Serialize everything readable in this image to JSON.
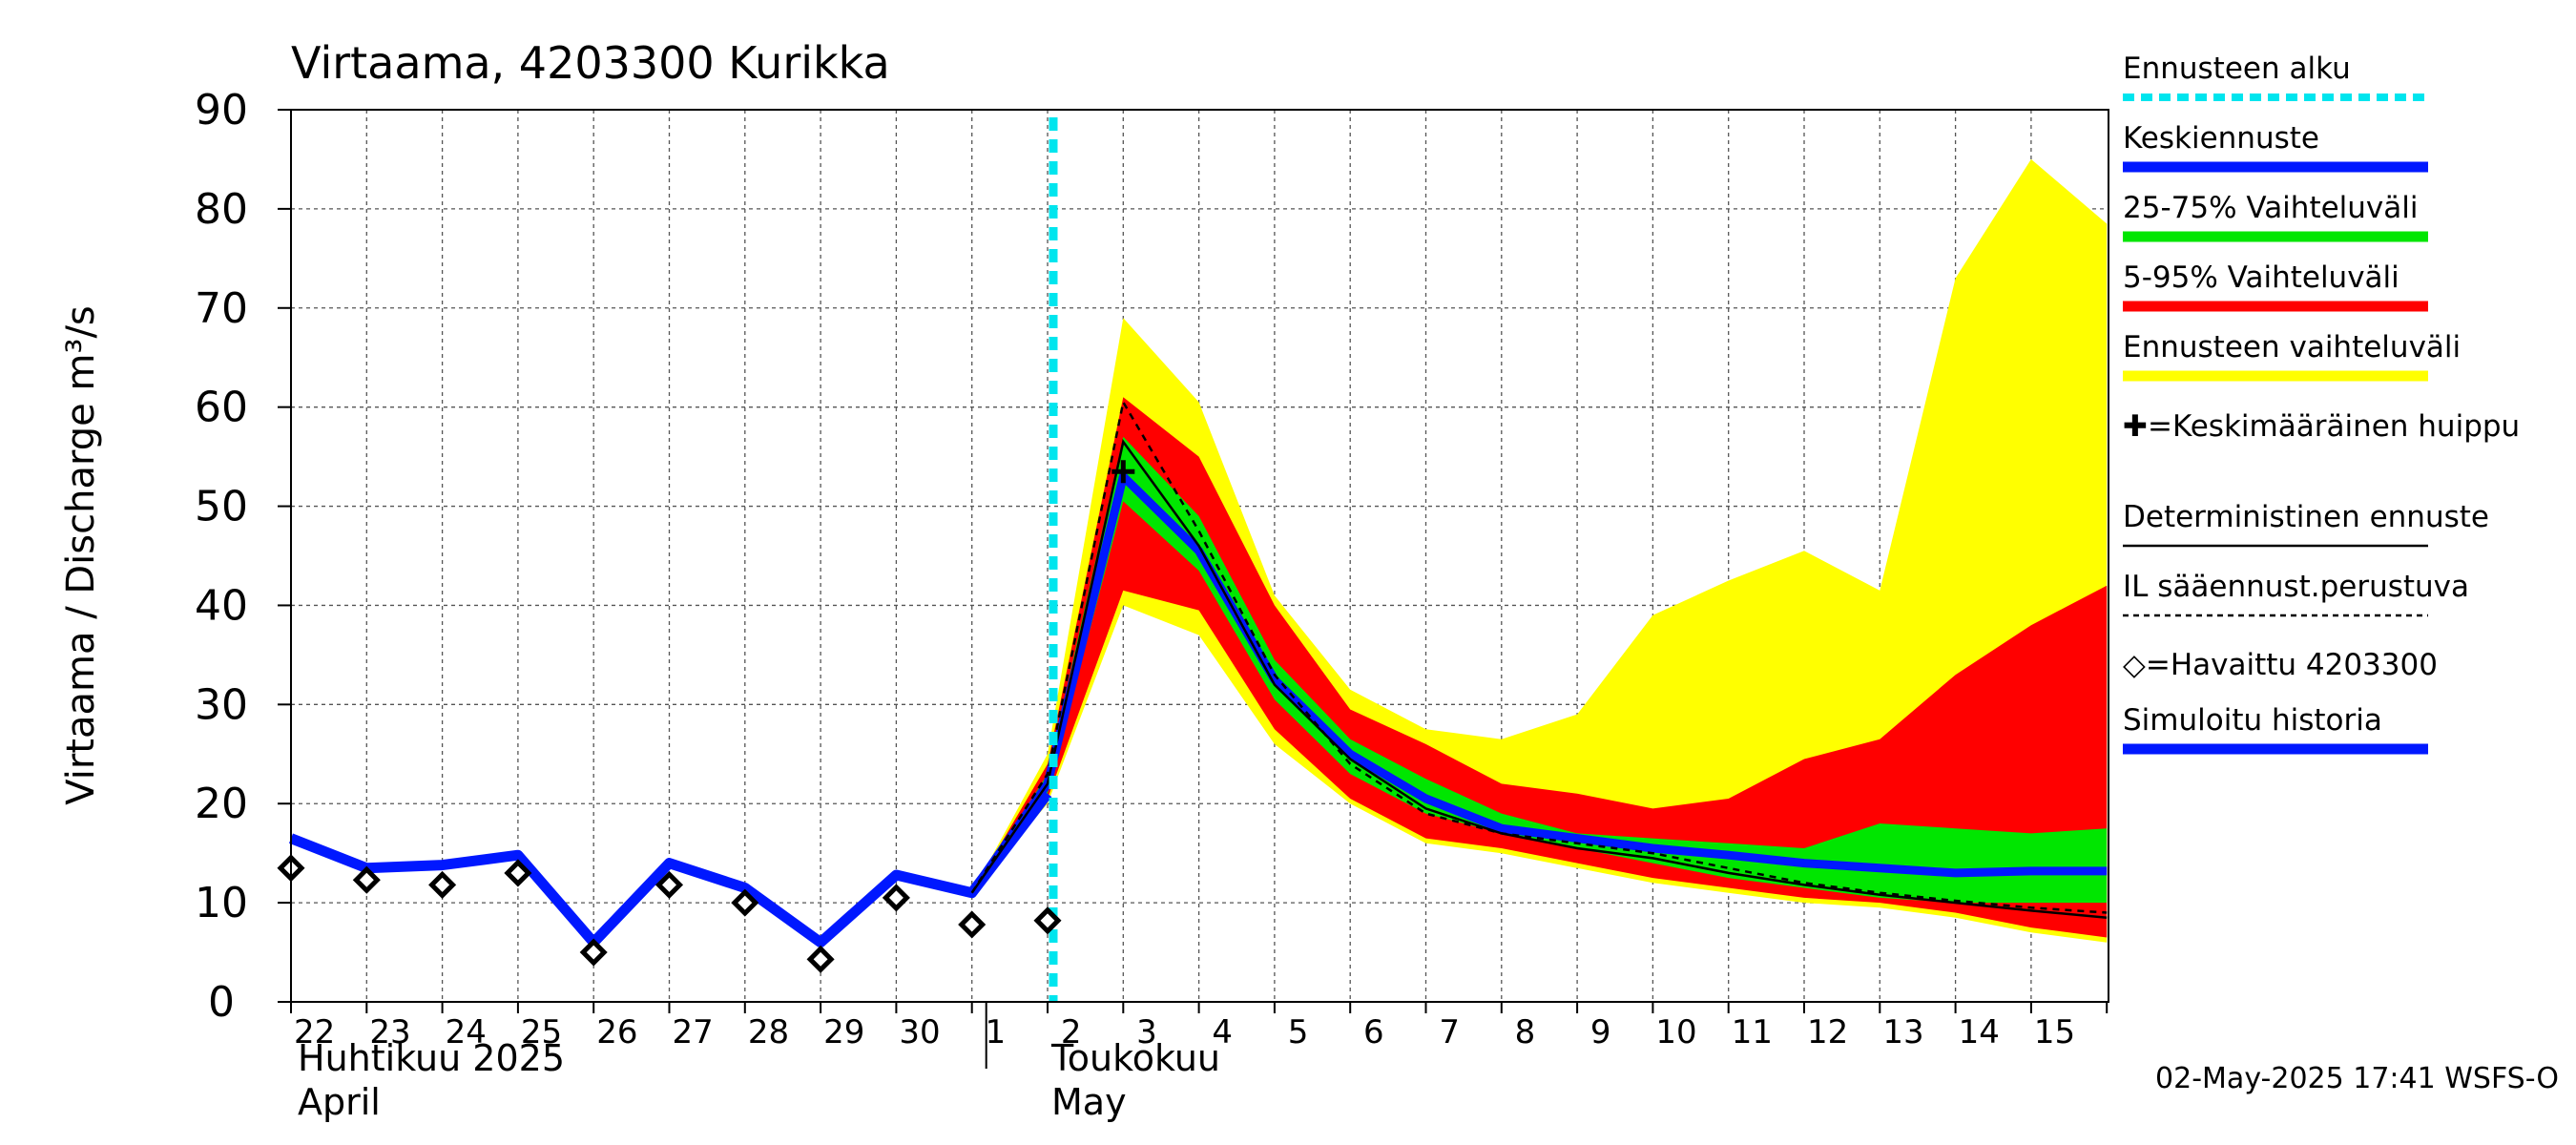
{
  "chart_data": {
    "type": "area",
    "title": "Virtaama, 4203300 Kurikka",
    "ylabel": "Virtaama / Discharge   m³/s",
    "ylim": [
      0,
      90
    ],
    "yticks": [
      0,
      10,
      20,
      30,
      40,
      50,
      60,
      70,
      80,
      90
    ],
    "grid": true,
    "legend_position": "right",
    "x_tick_labels": [
      "22",
      "23",
      "24",
      "25",
      "26",
      "27",
      "28",
      "29",
      "30",
      "1",
      "2",
      "3",
      "4",
      "5",
      "6",
      "7",
      "8",
      "9",
      "10",
      "11",
      "12",
      "13",
      "14",
      "15"
    ],
    "month_labels": [
      {
        "fi": "Huhtikuu  2025",
        "en": "April"
      },
      {
        "fi": "Toukokuu",
        "en": "May"
      }
    ],
    "forecast_start": "2025-05-02",
    "timestamp": "02-May-2025 17:41 WSFS-O",
    "legend": [
      {
        "label": "Ennusteen alku",
        "color": "#00e5ee",
        "style": "dotted-cyan"
      },
      {
        "label": "Keskiennuste",
        "color": "#0018ff",
        "style": "line"
      },
      {
        "label": "25-75% Vaihteluväli",
        "color": "#00e600",
        "style": "line"
      },
      {
        "label": "5-95% Vaihteluväli",
        "color": "#ff0000",
        "style": "line"
      },
      {
        "label": "Ennusteen vaihteluväli",
        "color": "#ffff00",
        "style": "line"
      },
      {
        "label": "✚=Keskimääräinen huippu",
        "color": "#000000",
        "style": "none"
      },
      {
        "label": "Deterministinen ennuste",
        "color": "#000000",
        "style": "thin"
      },
      {
        "label": "IL sääennust.perustuva",
        "color": "#000000",
        "style": "dashed"
      },
      {
        "label": "◇=Havaittu 4203300",
        "color": "#000000",
        "style": "none"
      },
      {
        "label": "Simuloitu historia",
        "color": "#0018ff",
        "style": "line"
      }
    ],
    "simulated_history": {
      "x": [
        0,
        1,
        2,
        3,
        4,
        5,
        6,
        7,
        8,
        9,
        10
      ],
      "y": [
        16.5,
        13.5,
        13.8,
        14.8,
        6.0,
        14.0,
        11.5,
        6.0,
        12.8,
        11.0,
        21.0
      ]
    },
    "observed": {
      "x": [
        0,
        1,
        2,
        3,
        4,
        5,
        6,
        7,
        8,
        9,
        10
      ],
      "y": [
        13.5,
        12.3,
        11.8,
        13.0,
        5.0,
        11.8,
        10.0,
        4.3,
        10.5,
        7.8,
        8.2
      ]
    },
    "forecast_x": [
      9,
      10,
      11,
      12,
      13,
      14,
      15,
      16,
      17,
      18,
      19,
      20,
      21,
      22,
      23,
      24
    ],
    "forecast_full_range": {
      "low": [
        11.0,
        20.0,
        40.0,
        37.0,
        26.0,
        20.0,
        16.0,
        15.0,
        13.5,
        12.0,
        11.0,
        10.0,
        9.5,
        8.5,
        7.0,
        6.0
      ],
      "high": [
        11.0,
        25.0,
        69.0,
        60.5,
        41.0,
        31.5,
        27.5,
        26.5,
        29.0,
        39.0,
        42.5,
        45.5,
        41.5,
        73.0,
        85.0,
        78.5
      ]
    },
    "forecast_5_95": {
      "low": [
        11.0,
        20.5,
        41.5,
        39.5,
        27.5,
        20.5,
        16.5,
        15.5,
        14.0,
        12.5,
        11.5,
        10.5,
        10.0,
        9.0,
        7.5,
        6.5
      ],
      "high": [
        11.0,
        24.0,
        61.0,
        55.0,
        40.0,
        29.5,
        26.0,
        22.0,
        21.0,
        19.5,
        20.5,
        24.5,
        26.5,
        33.0,
        38.0,
        42.0
      ]
    },
    "forecast_25_75": {
      "low": [
        11.0,
        21.0,
        50.5,
        43.5,
        30.5,
        23.0,
        19.0,
        17.0,
        15.5,
        14.0,
        12.5,
        11.5,
        10.5,
        10.0,
        10.0,
        10.0
      ],
      "high": [
        11.0,
        23.0,
        57.0,
        49.0,
        34.5,
        26.5,
        22.5,
        19.0,
        17.0,
        16.5,
        16.0,
        15.5,
        18.0,
        17.5,
        17.0,
        17.5
      ]
    },
    "forecast_mean": [
      11.0,
      22.0,
      53.0,
      45.5,
      32.5,
      25.0,
      20.5,
      17.5,
      16.5,
      15.5,
      14.8,
      14.0,
      13.5,
      13.0,
      13.2,
      13.2
    ],
    "deterministic": [
      11.0,
      22.0,
      56.5,
      46.0,
      32.0,
      24.5,
      19.5,
      17.0,
      15.5,
      14.5,
      13.0,
      11.8,
      10.8,
      10.0,
      9.2,
      8.5
    ],
    "il_forecast": [
      11.0,
      23.0,
      60.5,
      47.5,
      33.0,
      24.0,
      19.0,
      17.0,
      16.0,
      15.0,
      13.5,
      12.0,
      11.0,
      10.2,
      9.5,
      9.0
    ],
    "mean_peak": {
      "x": 11,
      "y": 53.5
    }
  }
}
